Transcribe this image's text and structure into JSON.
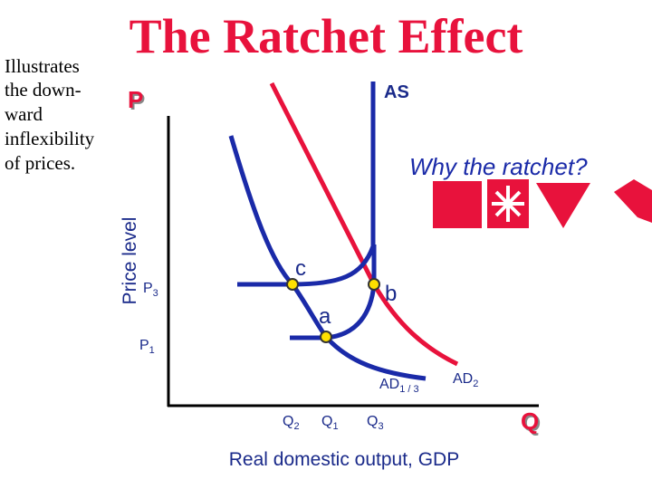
{
  "title": "The Ratchet Effect",
  "note": [
    "Illustrates",
    "the down-",
    "ward",
    "inflexibility",
    "of prices."
  ],
  "axes": {
    "y_symbol": "P",
    "x_symbol": "Q",
    "y_label": "Price level",
    "x_label": "Real domestic output, GDP"
  },
  "question": "Why the ratchet?",
  "curves": {
    "as": "AS",
    "ad13": {
      "base": "AD",
      "sub": "1 / 3"
    },
    "ad2": {
      "base": "AD",
      "sub": "2"
    }
  },
  "points": {
    "c": "c",
    "b": "b",
    "a": "a"
  },
  "prices": [
    {
      "base": "P",
      "sub": "3"
    },
    {
      "base": "P",
      "sub": "1"
    }
  ],
  "quantities": [
    {
      "base": "Q",
      "sub": "2"
    },
    {
      "base": "Q",
      "sub": "1"
    },
    {
      "base": "Q",
      "sub": "3"
    }
  ]
}
